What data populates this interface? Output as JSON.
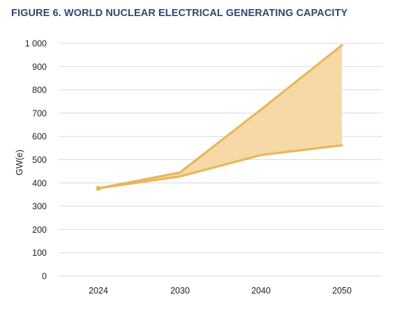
{
  "chart_data": {
    "type": "area",
    "title": "FIGURE 6. WORLD NUCLEAR ELECTRICAL GENERATING CAPACITY",
    "xlabel": "",
    "ylabel": "GW(e)",
    "categories": [
      "2024",
      "2030",
      "2040",
      "2050"
    ],
    "series": [
      {
        "values": [
          377,
          445,
          715,
          992
        ]
      },
      {
        "values": [
          377,
          428,
          520,
          562
        ]
      }
    ],
    "ylim": [
      0,
      1000
    ],
    "yticks": [
      0,
      100,
      200,
      300,
      400,
      500,
      600,
      700,
      800,
      900,
      1000
    ],
    "ytick_labels": [
      "0",
      "100",
      "200",
      "300",
      "400",
      "500",
      "600",
      "700",
      "800",
      "900",
      "1 000"
    ],
    "grid": true,
    "legend": "none",
    "colors": {
      "line": "#e8b75a",
      "fill": "#f6d9a6",
      "grid": "#d9d9d9",
      "title": "#2e4a6b"
    }
  }
}
